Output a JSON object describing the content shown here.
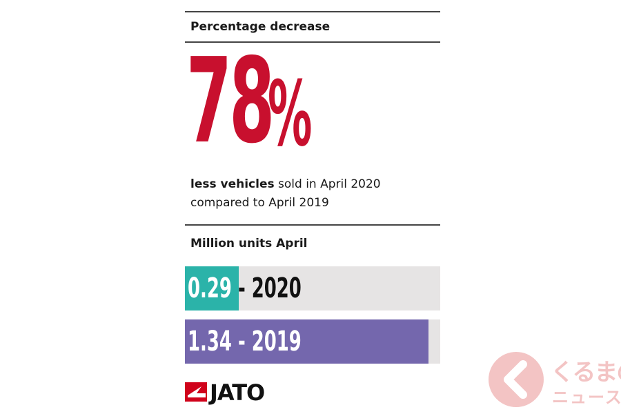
{
  "heading_top": "Percentage decrease",
  "big_stat": {
    "number": "78",
    "percent_sign": "%"
  },
  "description": {
    "strong": "less vehicles",
    "rest_line1": " sold in April 2020",
    "line2": "compared to April 2019"
  },
  "heading_bottom": "Million units April",
  "chart_data": {
    "type": "bar",
    "title": "Million units April",
    "orientation": "horizontal",
    "categories": [
      "2020",
      "2019"
    ],
    "values": [
      0.29,
      1.34
    ],
    "labels": [
      "0.29 - 2020",
      "1.34 - 2019"
    ],
    "colors": [
      "#2bb3a9",
      "#7467ad"
    ],
    "xlim": [
      0,
      1.4
    ]
  },
  "logo": {
    "text": "JATO",
    "mark_color": "#d0021b"
  },
  "watermark": {
    "line1": "くるまの",
    "line2": "ニュース",
    "color": "#f3c4c4"
  },
  "colors": {
    "accent": "#c8102e",
    "track": "#e6e4e4"
  }
}
